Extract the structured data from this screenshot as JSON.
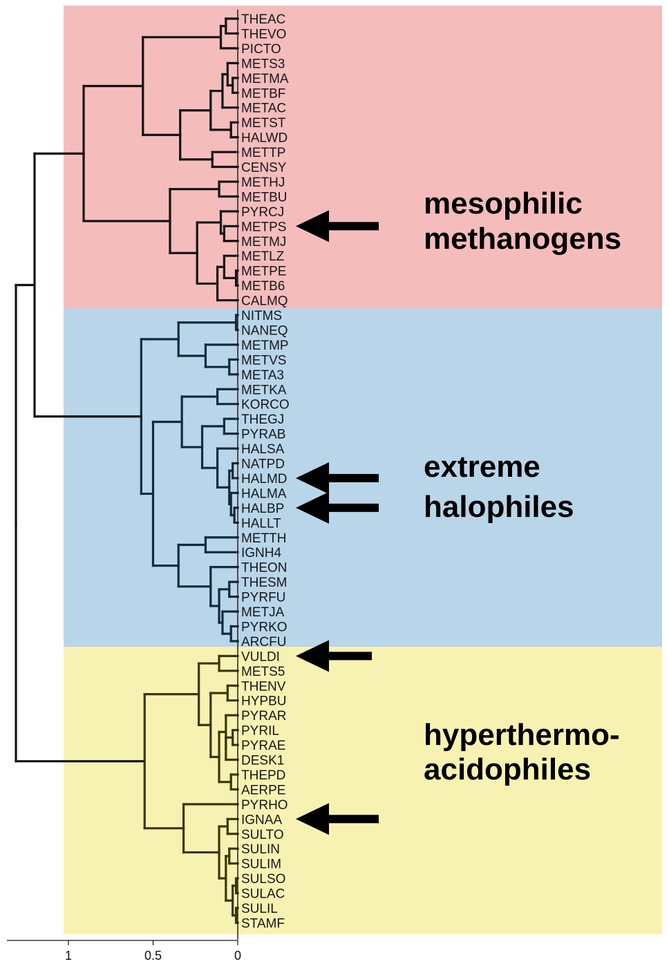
{
  "groups": [
    {
      "id": "meso",
      "lines": [
        "mesophilic",
        "methanogens"
      ],
      "color": "#f5bcbc",
      "branch_color": "#111111"
    },
    {
      "id": "halo",
      "lines": [
        "extreme",
        "halophiles"
      ],
      "color": "#b9d5e9",
      "branch_color": "#0e2a3f"
    },
    {
      "id": "hyper",
      "lines": [
        "hyperthermo-",
        "acidophiles"
      ],
      "color": "#f8f2b2",
      "branch_color": "#3a3600"
    }
  ],
  "leaves": [
    "THEAC",
    "THEVO",
    "PICTO",
    "METS3",
    "METMA",
    "METBF",
    "METAC",
    "METST",
    "HALWD",
    "METTP",
    "CENSY",
    "METHJ",
    "METBU",
    "PYRCJ",
    "METPS",
    "METMJ",
    "METLZ",
    "METPE",
    "METB6",
    "CALMQ",
    "NITMS",
    "NANEQ",
    "METMP",
    "METVS",
    "META3",
    "METKA",
    "KORCO",
    "THEGJ",
    "PYRAB",
    "HALSA",
    "NATPD",
    "HALMD",
    "HALMA",
    "HALBP",
    "HALLT",
    "METTH",
    "IGNH4",
    "THEON",
    "THESM",
    "PYRFU",
    "METJA",
    "PYRKO",
    "ARCFU",
    "VULDI",
    "METS5",
    "THENV",
    "HYPBU",
    "PYRAR",
    "PYRIL",
    "PYRAE",
    "DESK1",
    "THEPD",
    "AERPE",
    "PYRHO",
    "IGNAA",
    "SULTO",
    "SULIN",
    "SULIM",
    "SULSO",
    "SULAC",
    "SULIL",
    "STAMF"
  ],
  "arrows": [
    "METPS",
    "HALMD",
    "HALBP",
    "VULDI",
    "IGNAA"
  ],
  "axis": {
    "ticks": [
      {
        "value": 1,
        "label": "1"
      },
      {
        "value": 0.5,
        "label": "0.5"
      },
      {
        "value": 0,
        "label": "0"
      }
    ]
  },
  "tree": "((((((THEAC:0.03,THEVO:0.03):0.02,PICTO:0.05):0.52,((((METS3:0.04,(METMA:0.01,METBF:0.01):0.03):0.01,METAC:0.05):0.01,(METST:0.02,HALWD:0.02):0.04):0.13,(METTP:0.15,CENSY:0.15):0.04):0.38):0.34,(((METHJ:0.11,METBU:0.11):0.29,(((PYRCJ:0.09,(METPS:0.09,METMJ:0.09):0.0):0.15,((METLZ:0.05,(METPE:0.01,METB6:0.01):0.04):0.03,CALMQ:0.03):0.16):0.16):0.16):0.30):0.29,(((((NITMS:0.01,NANEQ:0.01):0.34,(METMP:0.20,(METVS:0.04,META3:0.04):0.16):0.15):0.25,(((METKA:0.12,KORCO:0.12):0.21,((THEGJ:0.08,PYRAB:0.08):0.13,(HALSA:0.08,((NATPD:0.05,HALMD:0.05):0.01,(HALMA:0.04,(HALBP:0.02,HALLT:0.02):0.02):0.02):0.03):0.13):0.12):0.17,((METTH:0.19,IGNH4:0.19):0.16,(THEON:0.16,((THESM:0.05,PYRFU:0.05):0.06,(METJA:0.05,(PYRKO:0.04,ARCFU:0.04):0.01):0.06):0.05):0.19):0.15):0.17):0.07,hole:0):0.65):0.10,(((VULDI:0.11,METS5:0.11):0.12,((THENV:0.06,HYPBU:0.06):0.05,((PYRAR:0.06,((PYRIL:0.03,PYRAE:0.03):0.04,DESK1:0.07):0.01):0.05,(THEPD:0.06,AERPE:0.06):0.05):0.06):0.12):0.38,((PYRHO:0.28,(((IGNAA:0.05,SULTO:0.05):0.09,((SULIN:0.04,SULIM:0.04):0.03,((SULSO:0.01,SULAC:0.01):0.02,(SULIL:0.01,STAMF:0.01):0.02):0.02):0.07):0.13):0.07):0.19):0.50)"
}
